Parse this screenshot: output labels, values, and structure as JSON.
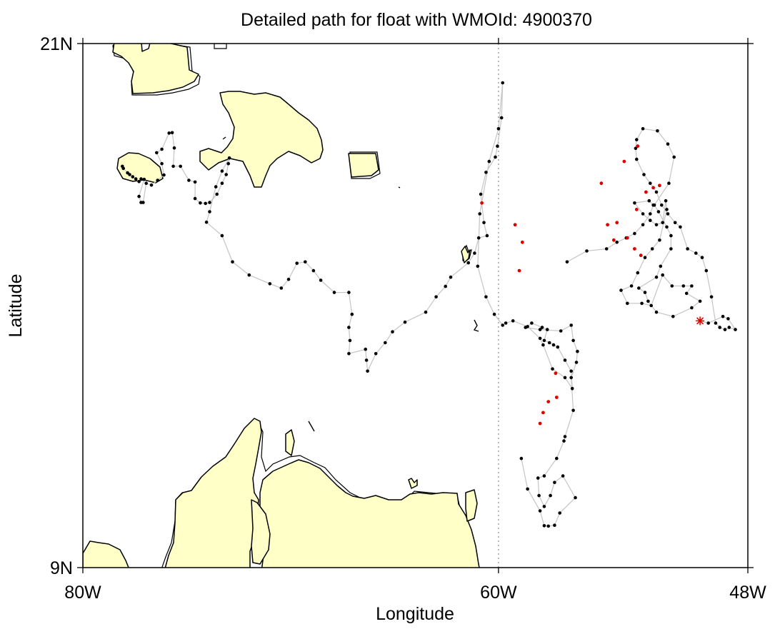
{
  "title": "Detailed path for float with WMOId: 4900370",
  "x_axis_label": "Longitude",
  "y_axis_label": "Latitude",
  "x_ticks": [
    {
      "label": "80W",
      "lon": -80
    },
    {
      "label": "60W",
      "lon": -60
    },
    {
      "label": "48W",
      "lon": -48
    }
  ],
  "y_ticks": [
    {
      "label": "21N",
      "lat": 21
    },
    {
      "label": "9N",
      "lat": 9
    }
  ],
  "colors": {
    "land_fill": "#ffffc8",
    "track_line": "#c8c8c8",
    "profile_point": "#000000",
    "highlight_point": "#e00000",
    "last_position_marker": "#e00000",
    "meridian_line": "#888888"
  },
  "chart_data": {
    "type": "scatter",
    "title": "Detailed path for float with WMOId: 4900370",
    "xlabel": "Longitude",
    "ylabel": "Latitude",
    "xlim": [
      -80,
      -48
    ],
    "ylim": [
      9,
      21
    ],
    "reference_meridian": -60,
    "last_position": [
      -50.3,
      14.65
    ],
    "series": [
      {
        "segment": "west",
        "points": [
          [
            -78.1,
            18.19
          ],
          [
            -78.05,
            18.14
          ],
          [
            -77.85,
            18.04
          ],
          [
            -77.75,
            18.0
          ],
          [
            -77.6,
            17.95
          ],
          [
            -77.45,
            17.9
          ],
          [
            -77.3,
            17.84
          ],
          [
            -77.2,
            17.9
          ],
          [
            -77.05,
            17.89
          ],
          [
            -77.3,
            17.5
          ],
          [
            -77.2,
            17.36
          ],
          [
            -77.1,
            17.36
          ],
          [
            -76.95,
            17.8
          ],
          [
            -76.7,
            17.76
          ],
          [
            -76.4,
            17.87
          ],
          [
            -76.1,
            17.99
          ],
          [
            -76.2,
            18.25
          ],
          [
            -76.45,
            18.5
          ],
          [
            -76.2,
            18.58
          ],
          [
            -75.85,
            18.95
          ],
          [
            -75.7,
            18.96
          ],
          [
            -75.6,
            18.61
          ],
          [
            -75.65,
            18.19
          ],
          [
            -75.3,
            18.19
          ],
          [
            -74.9,
            17.87
          ],
          [
            -74.6,
            17.83
          ],
          [
            -74.6,
            17.45
          ],
          [
            -74.35,
            17.35
          ],
          [
            -74.1,
            17.34
          ],
          [
            -73.9,
            17.36
          ],
          [
            -73.55,
            17.55
          ],
          [
            -73.3,
            17.8
          ],
          [
            -73.1,
            18.0
          ],
          [
            -73.0,
            18.25
          ],
          [
            -72.95,
            18.38
          ],
          [
            -73.3,
            18.08
          ],
          [
            -73.6,
            17.72
          ],
          [
            -73.9,
            17.15
          ],
          [
            -74.05,
            16.91
          ],
          [
            -73.3,
            16.6
          ],
          [
            -72.8,
            16.0
          ],
          [
            -72.0,
            15.7
          ],
          [
            -71.0,
            15.5
          ],
          [
            -70.45,
            15.4
          ],
          [
            -70.1,
            15.6
          ],
          [
            -69.7,
            15.97
          ],
          [
            -69.3,
            16.0
          ],
          [
            -68.9,
            15.8
          ],
          [
            -68.55,
            15.58
          ],
          [
            -67.9,
            15.3
          ],
          [
            -67.2,
            15.3
          ],
          [
            -67.05,
            14.8
          ],
          [
            -67.2,
            14.5
          ],
          [
            -67.15,
            14.2
          ],
          [
            -67.2,
            13.9
          ],
          [
            -66.4,
            14.0
          ],
          [
            -66.35,
            13.75
          ],
          [
            -66.3,
            13.5
          ],
          [
            -65.9,
            13.9
          ],
          [
            -65.45,
            14.15
          ],
          [
            -65.1,
            14.4
          ],
          [
            -64.5,
            14.62
          ],
          [
            -63.5,
            14.85
          ],
          [
            -63.0,
            15.2
          ],
          [
            -62.55,
            15.44
          ],
          [
            -62.3,
            15.65
          ],
          [
            -61.45,
            15.98
          ],
          [
            -61.15,
            16.2
          ],
          [
            -60.95,
            16.55
          ],
          [
            -60.55,
            16.6
          ],
          [
            -60.7,
            16.9
          ],
          [
            -60.85,
            17.55
          ],
          [
            -60.6,
            18.05
          ],
          [
            -60.15,
            18.4
          ],
          [
            -60.05,
            18.65
          ],
          [
            -59.85,
            19.3
          ],
          [
            -59.8,
            20.1
          ],
          [
            -60.0,
            19.05
          ],
          [
            -60.45,
            18.3
          ],
          [
            -60.9,
            17.1
          ],
          [
            -61.0,
            15.9
          ],
          [
            -60.6,
            15.2
          ],
          [
            -60.2,
            14.8
          ],
          [
            -59.8,
            14.55
          ]
        ]
      },
      {
        "segment": "central",
        "points": [
          [
            -59.65,
            14.6
          ],
          [
            -59.3,
            14.65
          ],
          [
            -58.6,
            14.52
          ],
          [
            -58.0,
            14.25
          ],
          [
            -57.85,
            14.1
          ],
          [
            -57.4,
            13.55
          ],
          [
            -56.8,
            13.35
          ],
          [
            -56.45,
            13.1
          ],
          [
            -56.5,
            13.5
          ],
          [
            -56.8,
            13.75
          ],
          [
            -57.15,
            14.05
          ],
          [
            -57.35,
            14.1
          ],
          [
            -57.55,
            14.15
          ],
          [
            -57.8,
            14.2
          ],
          [
            -57.65,
            14.45
          ],
          [
            -57.9,
            14.5
          ],
          [
            -58.4,
            14.6
          ],
          [
            -58.7,
            14.5
          ],
          [
            -58.0,
            14.45
          ],
          [
            -57.0,
            14.42
          ],
          [
            -56.5,
            14.55
          ],
          [
            -56.4,
            14.2
          ],
          [
            -56.2,
            13.95
          ],
          [
            -56.25,
            13.7
          ],
          [
            -56.5,
            13.35
          ],
          [
            -56.4,
            12.6
          ],
          [
            -56.8,
            12.0
          ],
          [
            -56.85,
            11.9
          ],
          [
            -57.2,
            11.5
          ],
          [
            -57.8,
            11.1
          ],
          [
            -58.1,
            11.05
          ],
          [
            -58.05,
            10.65
          ],
          [
            -57.8,
            10.4
          ],
          [
            -57.5,
            10.65
          ],
          [
            -57.3,
            10.95
          ],
          [
            -56.9,
            11.1
          ],
          [
            -56.3,
            10.6
          ],
          [
            -57.05,
            10.25
          ],
          [
            -57.3,
            9.97
          ],
          [
            -57.6,
            9.95
          ],
          [
            -57.8,
            9.96
          ],
          [
            -58.0,
            10.3
          ],
          [
            -58.6,
            10.8
          ],
          [
            -58.9,
            11.5
          ]
        ]
      },
      {
        "segment": "east",
        "points": [
          [
            -56.7,
            16.0
          ],
          [
            -55.75,
            16.25
          ],
          [
            -54.8,
            16.3
          ],
          [
            -54.3,
            16.45
          ],
          [
            -53.85,
            16.55
          ],
          [
            -53.45,
            16.65
          ],
          [
            -53.05,
            16.85
          ],
          [
            -52.7,
            17.1
          ],
          [
            -52.55,
            17.3
          ],
          [
            -52.75,
            17.4
          ],
          [
            -53.45,
            17.35
          ],
          [
            -53.05,
            17.1
          ],
          [
            -52.7,
            16.95
          ],
          [
            -52.4,
            16.85
          ],
          [
            -52.1,
            16.9
          ],
          [
            -51.95,
            17.4
          ],
          [
            -51.9,
            17.2
          ],
          [
            -52.25,
            16.5
          ],
          [
            -52.6,
            16.3
          ],
          [
            -52.95,
            16.1
          ],
          [
            -53.3,
            15.75
          ],
          [
            -53.6,
            15.45
          ],
          [
            -54.1,
            15.35
          ],
          [
            -53.8,
            15.05
          ],
          [
            -53.1,
            15.05
          ],
          [
            -52.65,
            15.0
          ],
          [
            -52.1,
            15.7
          ],
          [
            -51.65,
            15.45
          ],
          [
            -51.1,
            15.45
          ],
          [
            -50.7,
            15.45
          ],
          [
            -50.95,
            15.28
          ],
          [
            -50.3,
            15.1
          ],
          [
            -50.7,
            14.95
          ],
          [
            -51.6,
            14.75
          ],
          [
            -52.4,
            14.85
          ],
          [
            -52.8,
            15.1
          ],
          [
            -52.95,
            15.3
          ],
          [
            -53.25,
            15.4
          ],
          [
            -52.4,
            15.65
          ],
          [
            -52.2,
            15.9
          ],
          [
            -51.7,
            16.3
          ],
          [
            -51.7,
            16.6
          ],
          [
            -51.9,
            16.8
          ],
          [
            -52.3,
            17.15
          ],
          [
            -52.5,
            17.3
          ],
          [
            -51.8,
            17.8
          ],
          [
            -51.55,
            18.4
          ],
          [
            -51.85,
            18.7
          ],
          [
            -52.35,
            19.0
          ],
          [
            -53.05,
            19.05
          ],
          [
            -53.35,
            18.8
          ],
          [
            -53.4,
            18.6
          ],
          [
            -53.35,
            18.35
          ],
          [
            -53.0,
            18.0
          ],
          [
            -52.7,
            17.8
          ],
          [
            -52.4,
            17.6
          ],
          [
            -52.15,
            17.3
          ],
          [
            -51.85,
            17.1
          ],
          [
            -51.5,
            16.9
          ],
          [
            -51.25,
            16.8
          ],
          [
            -50.9,
            16.3
          ],
          [
            -50.5,
            16.2
          ],
          [
            -50.2,
            16.1
          ],
          [
            -50.0,
            15.8
          ],
          [
            -49.75,
            15.2
          ],
          [
            -49.55,
            14.6
          ],
          [
            -49.35,
            14.5
          ],
          [
            -49.1,
            14.45
          ],
          [
            -48.9,
            14.5
          ],
          [
            -48.6,
            14.45
          ],
          [
            -48.95,
            14.7
          ],
          [
            -49.2,
            14.75
          ],
          [
            -49.9,
            14.6
          ],
          [
            -50.3,
            14.65
          ]
        ]
      }
    ],
    "highlighted_points": [
      [
        -60.8,
        17.35
      ],
      [
        -59.2,
        16.85
      ],
      [
        -59.0,
        15.8
      ],
      [
        -58.85,
        16.45
      ],
      [
        -57.25,
        13.45
      ],
      [
        -57.2,
        12.9
      ],
      [
        -57.6,
        12.8
      ],
      [
        -57.85,
        12.55
      ],
      [
        -58.0,
        12.3
      ],
      [
        -55.05,
        17.8
      ],
      [
        -54.75,
        16.85
      ],
      [
        -54.45,
        16.5
      ],
      [
        -53.8,
        16.55
      ],
      [
        -53.45,
        16.3
      ],
      [
        -53.15,
        16.15
      ],
      [
        -53.35,
        17.2
      ],
      [
        -52.9,
        17.6
      ],
      [
        -52.55,
        17.7
      ],
      [
        -52.25,
        17.75
      ],
      [
        -54.3,
        16.9
      ],
      [
        -53.95,
        18.3
      ],
      [
        -53.3,
        18.65
      ]
    ]
  }
}
